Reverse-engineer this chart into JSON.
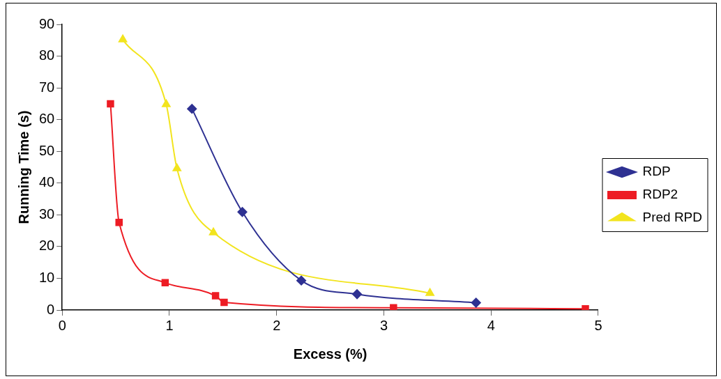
{
  "chart_data": {
    "type": "line",
    "xlabel": "Excess (%)",
    "ylabel": "Running Time (s)",
    "xlim": [
      0,
      5
    ],
    "xticks": [
      0,
      1,
      2,
      3,
      4,
      5
    ],
    "ylim": [
      0,
      90
    ],
    "yticks": [
      0,
      10,
      20,
      30,
      40,
      50,
      60,
      70,
      80,
      90
    ],
    "grid": false,
    "legend": "right",
    "line_style": "solid",
    "series": [
      {
        "name": "RDP",
        "color": "#2e3192",
        "marker": "diamond",
        "x": [
          1.21,
          1.68,
          2.23,
          2.75,
          3.86
        ],
        "values": [
          63.4,
          30.9,
          9.3,
          5.0,
          2.3
        ]
      },
      {
        "name": "RDP2",
        "color": "#ed1c24",
        "marker": "square",
        "x": [
          0.45,
          0.53,
          0.96,
          1.43,
          1.51,
          3.09,
          4.88
        ],
        "values": [
          65,
          27.6,
          8.6,
          4.5,
          2.4,
          0.7,
          0.4
        ]
      },
      {
        "name": "Pred RPD",
        "color": "#f2e41e",
        "marker": "triangle",
        "x": [
          0.565,
          0.97,
          1.07,
          1.41,
          3.43
        ],
        "values": [
          85.2,
          64.8,
          44.6,
          24.4,
          5.3
        ]
      }
    ]
  }
}
